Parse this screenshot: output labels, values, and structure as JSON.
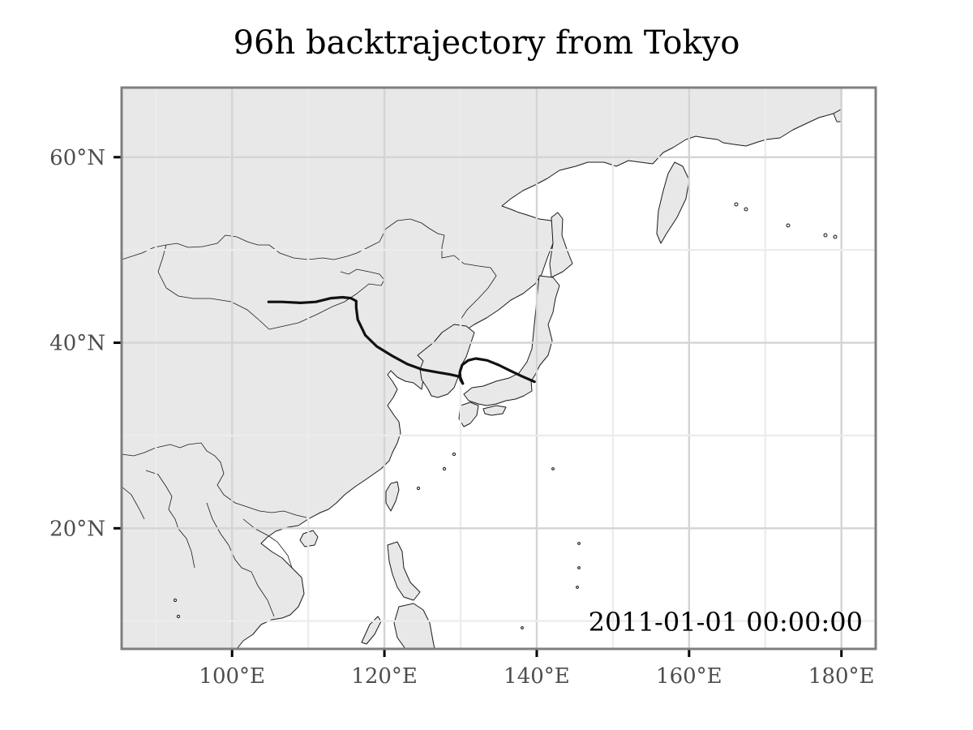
{
  "title": "96h backtrajectory from Tokyo",
  "timestamp": "2011-01-01 00:00:00",
  "colors": {
    "land": "#e8e8e8",
    "ocean": "#ffffff",
    "coastline": "#1a1a1a",
    "grid_major": "#d4d4d4",
    "grid_minor": "#ececec",
    "frame": "#7f7f7f",
    "trajectory": "#111111"
  },
  "chart_data": {
    "type": "line",
    "title": "96h backtrajectory from Tokyo",
    "xlabel": "",
    "ylabel": "",
    "xlim": [
      85.5,
      184.5
    ],
    "ylim": [
      7,
      67.5
    ],
    "x_ticks": [
      {
        "value": 100,
        "label": "100°E"
      },
      {
        "value": 120,
        "label": "120°E"
      },
      {
        "value": 140,
        "label": "140°E"
      },
      {
        "value": 160,
        "label": "160°E"
      },
      {
        "value": 180,
        "label": "180°E"
      }
    ],
    "y_ticks": [
      {
        "value": 20,
        "label": "20°N"
      },
      {
        "value": 40,
        "label": "40°N"
      },
      {
        "value": 60,
        "label": "60°N"
      }
    ],
    "grid": true,
    "annotation": "2011-01-01 00:00:00",
    "series": [
      {
        "lon": [
          104.8,
          106.5,
          109.0,
          111.0,
          113.0,
          114.5,
          115.6,
          116.3,
          116.3,
          116.5,
          117.5,
          119.0,
          121.0,
          123.0,
          125.0,
          127.0,
          128.5,
          129.6,
          130.0,
          130.3,
          130.0,
          129.9,
          130.2,
          131.0,
          132.0,
          133.5,
          135.0,
          136.5,
          138.0,
          139.7
        ],
        "lat": [
          44.4,
          44.4,
          44.3,
          44.4,
          44.8,
          44.9,
          44.8,
          44.5,
          43.8,
          42.5,
          40.8,
          39.6,
          38.6,
          37.7,
          37.1,
          36.8,
          36.6,
          36.4,
          36.2,
          35.6,
          36.0,
          36.8,
          37.6,
          38.1,
          38.3,
          38.1,
          37.6,
          37.0,
          36.4,
          35.8
        ]
      }
    ]
  }
}
